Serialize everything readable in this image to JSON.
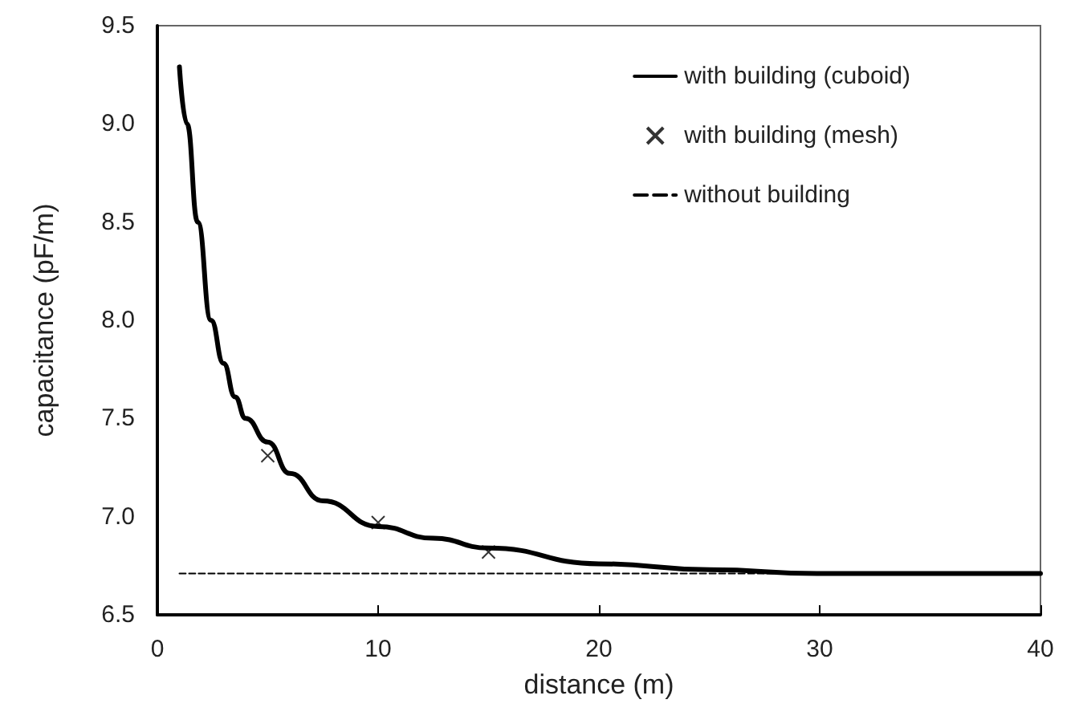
{
  "chart_data": {
    "type": "line",
    "xlabel": "distance (m)",
    "ylabel": "capacitance (pF/m)",
    "xlim": [
      0,
      40
    ],
    "xticks": [
      0,
      10,
      20,
      30,
      40
    ],
    "ylim": [
      6.5,
      9.5
    ],
    "yticks": [
      {
        "value": 6.5,
        "label": "6.5"
      },
      {
        "value": 7,
        "label": "7.0"
      },
      {
        "value": 7.5,
        "label": "7.5"
      },
      {
        "value": 8,
        "label": "8.0"
      },
      {
        "value": 8.5,
        "label": "8.5"
      },
      {
        "value": 9,
        "label": "9.0"
      },
      {
        "value": 9.5,
        "label": "9.5"
      }
    ],
    "grid": false,
    "legend": "top right",
    "series": [
      {
        "name": "with building (cuboid)",
        "color": "#000000",
        "marker": "none",
        "line_style": "solid",
        "x": [
          1,
          1.34,
          1.83,
          2.43,
          3,
          3.52,
          4,
          5,
          6,
          7.5,
          10,
          12.5,
          15,
          20,
          25,
          30,
          35,
          40
        ],
        "values": [
          9.29,
          9.0,
          8.5,
          8.0,
          7.78,
          7.61,
          7.5,
          7.38,
          7.22,
          7.08,
          6.95,
          6.89,
          6.84,
          6.76,
          6.73,
          6.71,
          6.71,
          6.71
        ]
      },
      {
        "name": "with building (mesh)",
        "type": "scatter",
        "color": "#000000",
        "marker": "cross",
        "x": [
          5,
          10,
          15
        ],
        "values": [
          7.31,
          6.97,
          6.82
        ]
      },
      {
        "name": "without building",
        "color": "#000000",
        "marker": "none",
        "line_style": "dashed",
        "x": [
          1,
          40
        ],
        "values": [
          6.71,
          6.71
        ]
      }
    ]
  }
}
